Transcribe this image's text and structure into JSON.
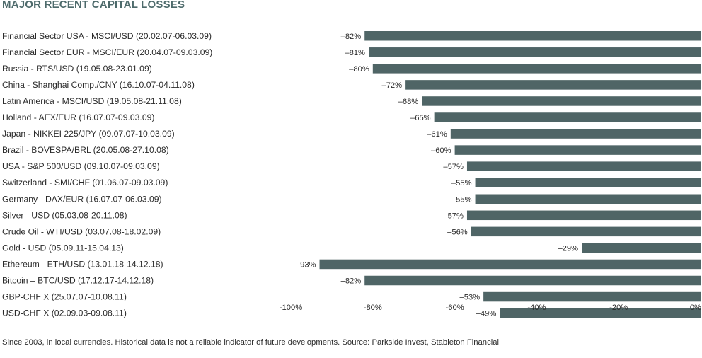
{
  "chart_data": {
    "type": "bar",
    "orientation": "horizontal",
    "title": "MAJOR RECENT CAPITAL LOSSES",
    "categories": [
      "Financial Sector USA - MSCI/USD (20.02.07-06.03.09)",
      "Financial Sector EUR - MSCI/EUR (20.04.07-09.03.09)",
      "Russia - RTS/USD (19.05.08-23.01.09)",
      "China - Shanghai Comp./CNY (16.10.07-04.11.08)",
      "Latin America - MSCI/USD (19.05.08-21.11.08)",
      "Holland - AEX/EUR (16.07.07-09.03.09)",
      "Japan - NIKKEI 225/JPY (09.07.07-10.03.09)",
      "Brazil - BOVESPA/BRL (20.05.08-27.10.08)",
      "USA - S&P 500/USD (09.10.07-09.03.09)",
      "Switzerland - SMI/CHF (01.06.07-09.03.09)",
      "Germany - DAX/EUR (16.07.07-06.03.09)",
      "Silver - USD (05.03.08-20.11.08)",
      "Crude Oil - WTI/USD (03.07.08-18.02.09)",
      "Gold - USD (05.09.11-15.04.13)",
      "Ethereum - ETH/USD (13.01.18-14.12.18)",
      "Bitcoin – BTC/USD (17.12.17-14.12.18)",
      "GBP-CHF X (25.07.07-10.08.11)",
      "USD-CHF X (02.09.03-09.08.11)"
    ],
    "values": [
      -82,
      -81,
      -80,
      -72,
      -68,
      -65,
      -61,
      -60,
      -57,
      -55,
      -55,
      -57,
      -56,
      -29,
      -93,
      -82,
      -53,
      -49
    ],
    "value_labels": [
      "–82%",
      "–81%",
      "–80%",
      "–72%",
      "–68%",
      "–65%",
      "–61%",
      "–60%",
      "–57%",
      "–55%",
      "–55%",
      "–57%",
      "–56%",
      "–29%",
      "–93%",
      "–82%",
      "–53%",
      "–49%"
    ],
    "xlim": [
      -100,
      0
    ],
    "xticks": [
      -100,
      -80,
      -60,
      -40,
      -20,
      0
    ],
    "xtick_labels": [
      "-100%",
      "-80%",
      "-60%",
      "-40%",
      "-20%",
      "0%"
    ],
    "bar_color": "#4f6566",
    "grid": false,
    "legend": "none"
  },
  "footnote": "Since 2003, in local currencies. Historical data is not a reliable indicator of future developments. Source: Parkside Invest, Stableton Financial"
}
